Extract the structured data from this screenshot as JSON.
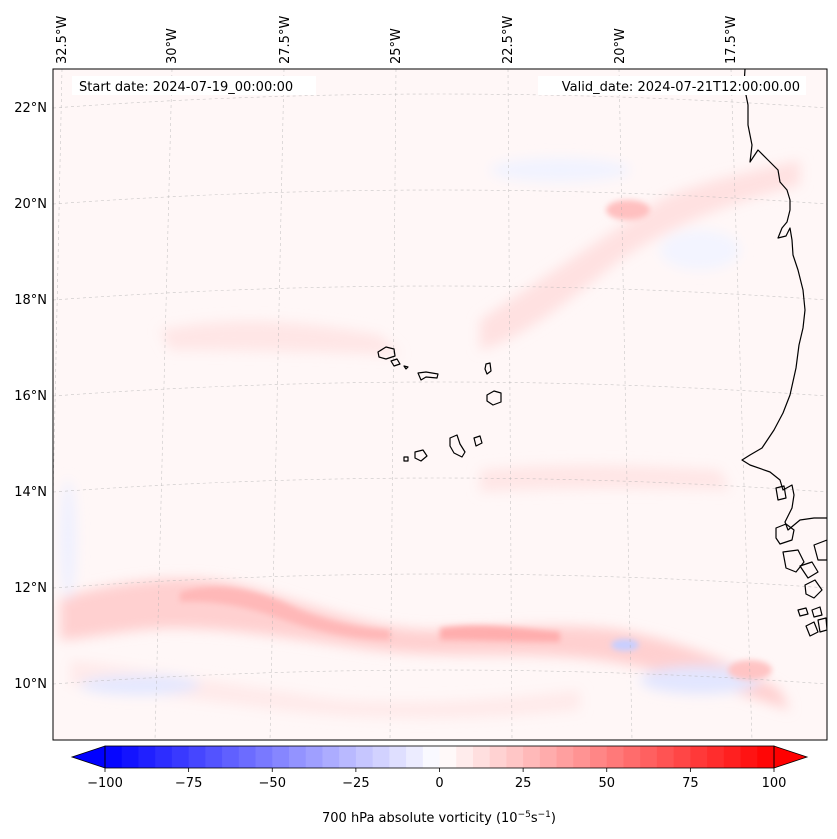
{
  "header": {
    "start_date": "Start date: 2024-07-19_00:00:00",
    "valid_date": "Valid_date: 2024-07-21T12:00:00.00"
  },
  "map": {
    "lon_labels": [
      "32.5°W",
      "30°W",
      "27.5°W",
      "25°W",
      "22.5°W",
      "20°W",
      "17.5°W"
    ],
    "lat_labels": [
      "22°N",
      "20°N",
      "18°N",
      "16°N",
      "14°N",
      "12°N",
      "10°N"
    ],
    "features": [
      "cape-verde-islands",
      "west-africa-coastline"
    ]
  },
  "colorbar": {
    "title_prefix": "700 hPa absolute vorticity (10",
    "title_exp1": "−5",
    "title_mid": "s",
    "title_exp2": "−1",
    "title_suffix": ")",
    "ticks": [
      "−100",
      "−75",
      "−50",
      "−25",
      "0",
      "25",
      "50",
      "75",
      "100"
    ],
    "tick_values": [
      -100,
      -75,
      -50,
      -25,
      0,
      25,
      50,
      75,
      100
    ],
    "range": [
      -100,
      100
    ],
    "levels": 40,
    "min_color": "#0000ff",
    "mid_color": "#ffffff",
    "max_color": "#ff0000"
  }
}
